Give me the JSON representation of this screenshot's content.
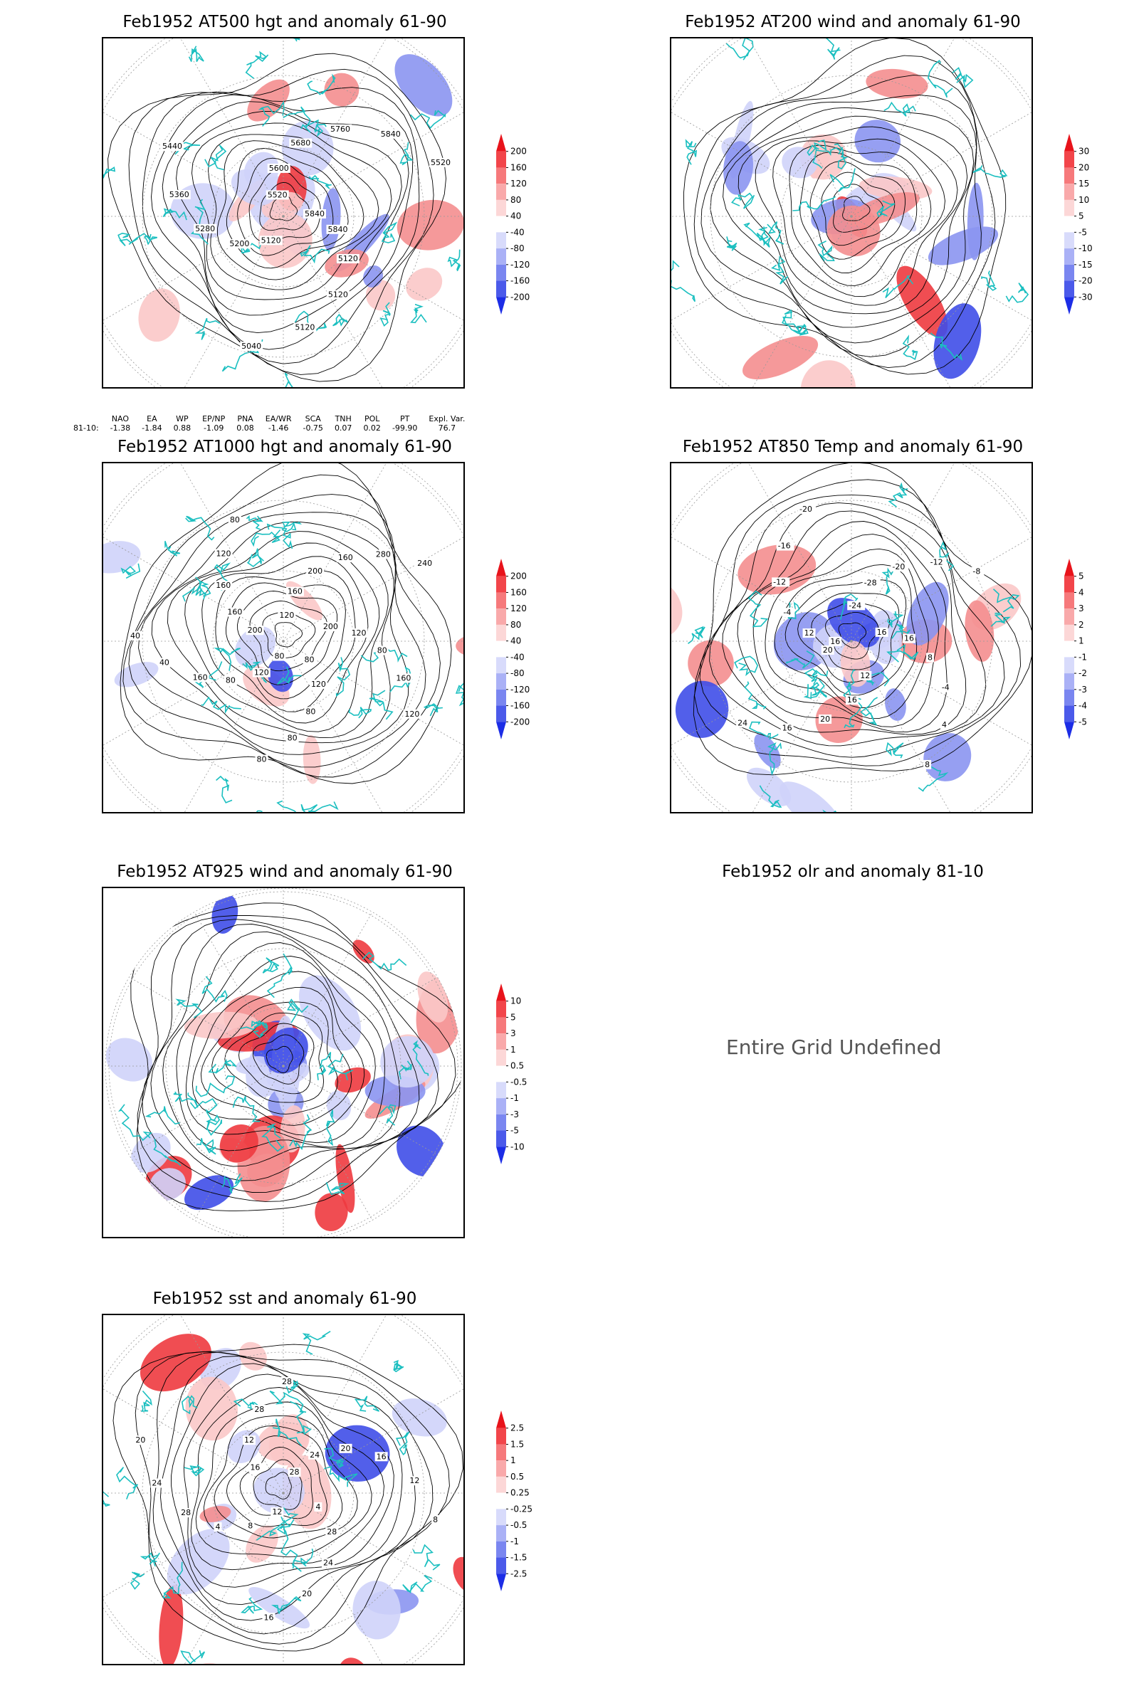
{
  "panels": [
    {
      "key": "p500",
      "title": "Feb1952 AT500 hgt and anomaly 61-90",
      "contours": [
        "5840",
        "5840",
        "5120",
        "5120",
        "5120",
        "5040",
        "5120",
        "5200",
        "5280",
        "5360",
        "5440",
        "5520",
        "5600",
        "5680",
        "5760",
        "5840",
        "5520"
      ],
      "colorbar": [
        "200",
        "160",
        "120",
        "80",
        "40",
        "-40",
        "-80",
        "-120",
        "-160",
        "-200"
      ]
    },
    {
      "key": "p200",
      "title": "Feb1952 AT200 wind and anomaly 61-90",
      "colorbar": [
        "30",
        "20",
        "15",
        "10",
        "5",
        "-5",
        "-10",
        "-15",
        "-20",
        "-30"
      ]
    },
    {
      "key": "p1000",
      "title": "Feb1952 AT1000 hgt and anomaly 61-90",
      "contours": [
        "80",
        "120",
        "80",
        "160",
        "40",
        "40",
        "200",
        "160",
        "160",
        "120",
        "80",
        "120",
        "160",
        "200",
        "160",
        "280",
        "240",
        "200",
        "120",
        "80",
        "160",
        "120",
        "80",
        "120",
        "80",
        "80",
        "80"
      ],
      "colorbar": [
        "200",
        "160",
        "120",
        "80",
        "40",
        "-40",
        "-80",
        "-120",
        "-160",
        "-200"
      ]
    },
    {
      "key": "p850",
      "title": "Feb1952 AT850 Temp and anomaly 61-90",
      "contours": [
        "16",
        "12",
        "-4",
        "-12",
        "-16",
        "-20",
        "-24",
        "-28",
        "-20",
        "-12",
        "-8",
        "16",
        "16",
        "8",
        "-4",
        "4",
        "8",
        "12",
        "16",
        "20",
        "16",
        "24",
        "20"
      ],
      "colorbar": [
        "5",
        "4",
        "3",
        "2",
        "1",
        "-1",
        "-2",
        "-3",
        "-4",
        "-5"
      ]
    },
    {
      "key": "p925",
      "title": "Feb1952 AT925 wind and anomaly 61-90",
      "colorbar": [
        "10",
        "5",
        "3",
        "1",
        "0.5",
        "-0.5",
        "-1",
        "-3",
        "-5",
        "-10"
      ]
    },
    {
      "key": "polr",
      "title": "Feb1952 olr and anomaly 81-10",
      "message": "Entire Grid Undefined"
    },
    {
      "key": "psst",
      "title": "Feb1952 sst and anomaly 61-90",
      "contours": [
        "28",
        "24",
        "20",
        "16",
        "12",
        "8",
        "4",
        "28",
        "24",
        "20",
        "16",
        "12",
        "8",
        "4",
        "28",
        "24",
        "20",
        "16",
        "12",
        "28",
        "28"
      ],
      "colorbar": [
        "2.5",
        "1.5",
        "1",
        "0.5",
        "0.25",
        "-0.25",
        "-0.5",
        "-1",
        "-1.5",
        "-2.5"
      ]
    }
  ],
  "indices": {
    "headers": [
      "",
      "NAO",
      "EA",
      "WP",
      "EP/NP",
      "PNA",
      "EA/WR",
      "SCA",
      "TNH",
      "POL",
      "PT",
      "Expl. Var."
    ],
    "values": [
      "81-10:",
      "-1.38",
      "-1.84",
      "0.88",
      "-1.09",
      "0.08",
      "-1.46",
      "-0.75",
      "0.07",
      "0.02",
      "-99.90",
      "76.7"
    ]
  },
  "colors": {
    "coast": "#1bbfc0",
    "pos_strong": "#e8131b",
    "neg_strong": "#1c2de6",
    "contour": "#000000"
  }
}
